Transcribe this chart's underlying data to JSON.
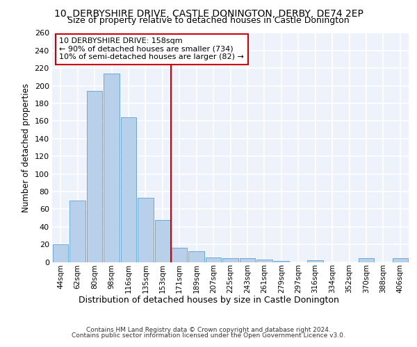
{
  "title_line1": "10, DERBYSHIRE DRIVE, CASTLE DONINGTON, DERBY, DE74 2EP",
  "title_line2": "Size of property relative to detached houses in Castle Donington",
  "xlabel": "Distribution of detached houses by size in Castle Donington",
  "ylabel": "Number of detached properties",
  "bar_labels": [
    "44sqm",
    "62sqm",
    "80sqm",
    "98sqm",
    "116sqm",
    "135sqm",
    "153sqm",
    "171sqm",
    "189sqm",
    "207sqm",
    "225sqm",
    "243sqm",
    "261sqm",
    "279sqm",
    "297sqm",
    "316sqm",
    "334sqm",
    "352sqm",
    "370sqm",
    "388sqm",
    "406sqm"
  ],
  "bar_values": [
    20,
    70,
    194,
    214,
    164,
    73,
    48,
    16,
    12,
    5,
    4,
    4,
    3,
    1,
    0,
    2,
    0,
    0,
    4,
    0,
    4
  ],
  "bar_color": "#b8d0ea",
  "bar_edgecolor": "#6aaad4",
  "background_color": "#eef2fb",
  "grid_color": "#ffffff",
  "vline_x": 6.5,
  "vline_color": "#cc0000",
  "annotation_text": "10 DERBYSHIRE DRIVE: 158sqm\n← 90% of detached houses are smaller (734)\n10% of semi-detached houses are larger (82) →",
  "annotation_box_color": "#cc0000",
  "ylim": [
    0,
    260
  ],
  "yticks": [
    0,
    20,
    40,
    60,
    80,
    100,
    120,
    140,
    160,
    180,
    200,
    220,
    240,
    260
  ],
  "footer_line1": "Contains HM Land Registry data © Crown copyright and database right 2024.",
  "footer_line2": "Contains public sector information licensed under the Open Government Licence v3.0."
}
